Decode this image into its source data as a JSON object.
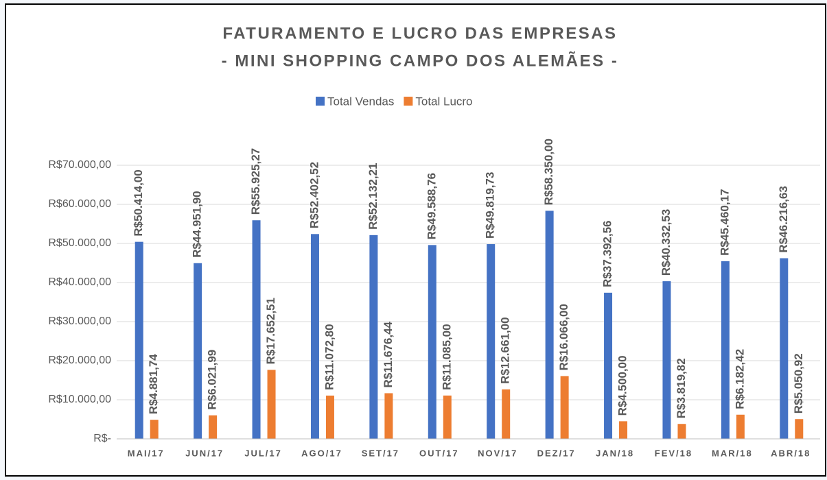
{
  "chart_data": {
    "type": "bar",
    "title": "FATURAMENTO  E LUCRO DAS EMPRESAS",
    "subtitle": "- MINI SHOPPING CAMPO DOS ALEMÃES -",
    "categories": [
      "MAI/17",
      "JUN/17",
      "JUL/17",
      "AGO/17",
      "SET/17",
      "OUT/17",
      "NOV/17",
      "DEZ/17",
      "JAN/18",
      "FEV/18",
      "MAR/18",
      "ABR/18"
    ],
    "series": [
      {
        "name": "Total Vendas",
        "color": "#4472c4",
        "values": [
          50414.0,
          44951.9,
          55925.27,
          52402.52,
          52132.21,
          49588.76,
          49819.73,
          58350.0,
          37392.56,
          40332.53,
          45460.17,
          46216.63
        ],
        "value_labels": [
          "R$50.414,00",
          "R$44.951,90",
          "R$55.925,27",
          "R$52.402,52",
          "R$52.132,21",
          "R$49.588,76",
          "R$49.819,73",
          "R$58.350,00",
          "R$37.392,56",
          "R$40.332,53",
          "R$45.460,17",
          "R$46.216,63"
        ]
      },
      {
        "name": "Total Lucro",
        "color": "#ed7d31",
        "values": [
          4881.74,
          6021.99,
          17652.51,
          11072.8,
          11676.44,
          11085.0,
          12661.0,
          16066.0,
          4500.0,
          3819.82,
          6182.42,
          5050.92
        ],
        "value_labels": [
          "R$4.881,74",
          "R$6.021,99",
          "R$17.652,51",
          "R$11.072,80",
          "R$11.676,44",
          "R$11.085,00",
          "R$12.661,00",
          "R$16.066,00",
          "R$4.500,00",
          "R$3.819,82",
          "R$6.182,42",
          "R$5.050,92"
        ]
      }
    ],
    "ylim": [
      0,
      70000
    ],
    "yticks": [
      {
        "value": 0,
        "label": "R$-"
      },
      {
        "value": 10000,
        "label": "R$10.000,00"
      },
      {
        "value": 20000,
        "label": "R$20.000,00"
      },
      {
        "value": 30000,
        "label": "R$30.000,00"
      },
      {
        "value": 40000,
        "label": "R$40.000,00"
      },
      {
        "value": 50000,
        "label": "R$50.000,00"
      },
      {
        "value": 60000,
        "label": "R$60.000,00"
      },
      {
        "value": 70000,
        "label": "R$70.000,00"
      }
    ],
    "grid": true,
    "legend": "top"
  }
}
